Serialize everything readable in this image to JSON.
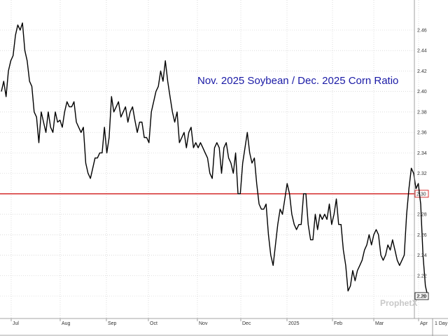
{
  "colors": {
    "price_line": "#000000",
    "reference_line": "#cc0000",
    "title": "#1a1aa6",
    "grid": "#c8c8c8",
    "axis": "#888888",
    "watermark": "#c8c8c8"
  },
  "watermark": "ProphetX",
  "chart_data": {
    "type": "line",
    "title": "Nov. 2025 Soybean / Dec. 2025 Corn Ratio",
    "xlabel": "",
    "ylabel": "",
    "ylim": [
      2.19,
      2.47
    ],
    "y_ticks": [
      "2.46",
      "2.44",
      "2.42",
      "2.40",
      "2.38",
      "2.36",
      "2.34",
      "2.32",
      "2.30",
      "2.28",
      "2.26",
      "2.24",
      "2.22",
      "2.20"
    ],
    "x_ticks": [
      "Jul",
      "Aug",
      "Sep",
      "Oct",
      "Nov",
      "Dec",
      "2025",
      "Feb",
      "Mar",
      "Apr"
    ],
    "x_period_label": "1 Day",
    "reference_line": {
      "value": 2.3,
      "label": "2.30"
    },
    "last_value_label": "2.20",
    "grid": true,
    "series": [
      {
        "values": [
          2.4,
          2.41,
          2.395,
          2.42,
          2.43,
          2.435,
          2.455,
          2.465,
          2.46,
          2.467,
          2.44,
          2.43,
          2.41,
          2.405,
          2.38,
          2.375,
          2.35,
          2.38,
          2.37,
          2.36,
          2.38,
          2.365,
          2.36,
          2.38,
          2.37,
          2.372,
          2.365,
          2.38,
          2.39,
          2.385,
          2.385,
          2.39,
          2.37,
          2.365,
          2.36,
          2.365,
          2.33,
          2.32,
          2.315,
          2.325,
          2.335,
          2.335,
          2.34,
          2.34,
          2.365,
          2.34,
          2.355,
          2.395,
          2.38,
          2.385,
          2.39,
          2.375,
          2.38,
          2.385,
          2.37,
          2.38,
          2.385,
          2.372,
          2.36,
          2.37,
          2.37,
          2.355,
          2.355,
          2.35,
          2.38,
          2.39,
          2.4,
          2.405,
          2.42,
          2.41,
          2.43,
          2.41,
          2.395,
          2.38,
          2.37,
          2.38,
          2.35,
          2.355,
          2.36,
          2.345,
          2.36,
          2.365,
          2.345,
          2.35,
          2.345,
          2.35,
          2.345,
          2.34,
          2.335,
          2.32,
          2.315,
          2.345,
          2.35,
          2.345,
          2.32,
          2.345,
          2.35,
          2.335,
          2.33,
          2.32,
          2.34,
          2.3,
          2.3,
          2.33,
          2.345,
          2.36,
          2.34,
          2.33,
          2.335,
          2.31,
          2.29,
          2.285,
          2.285,
          2.29,
          2.26,
          2.24,
          2.23,
          2.25,
          2.27,
          2.285,
          2.28,
          2.295,
          2.31,
          2.3,
          2.28,
          2.27,
          2.265,
          2.27,
          2.27,
          2.3,
          2.3,
          2.27,
          2.255,
          2.255,
          2.28,
          2.265,
          2.28,
          2.275,
          2.28,
          2.275,
          2.29,
          2.27,
          2.28,
          2.295,
          2.27,
          2.27,
          2.245,
          2.23,
          2.205,
          2.21,
          2.225,
          2.215,
          2.225,
          2.23,
          2.235,
          2.245,
          2.25,
          2.26,
          2.25,
          2.26,
          2.265,
          2.26,
          2.24,
          2.235,
          2.24,
          2.25,
          2.245,
          2.255,
          2.245,
          2.235,
          2.23,
          2.235,
          2.24,
          2.28,
          2.305,
          2.325,
          2.32,
          2.305,
          2.31,
          2.29,
          2.24,
          2.21,
          2.2
        ]
      }
    ]
  }
}
